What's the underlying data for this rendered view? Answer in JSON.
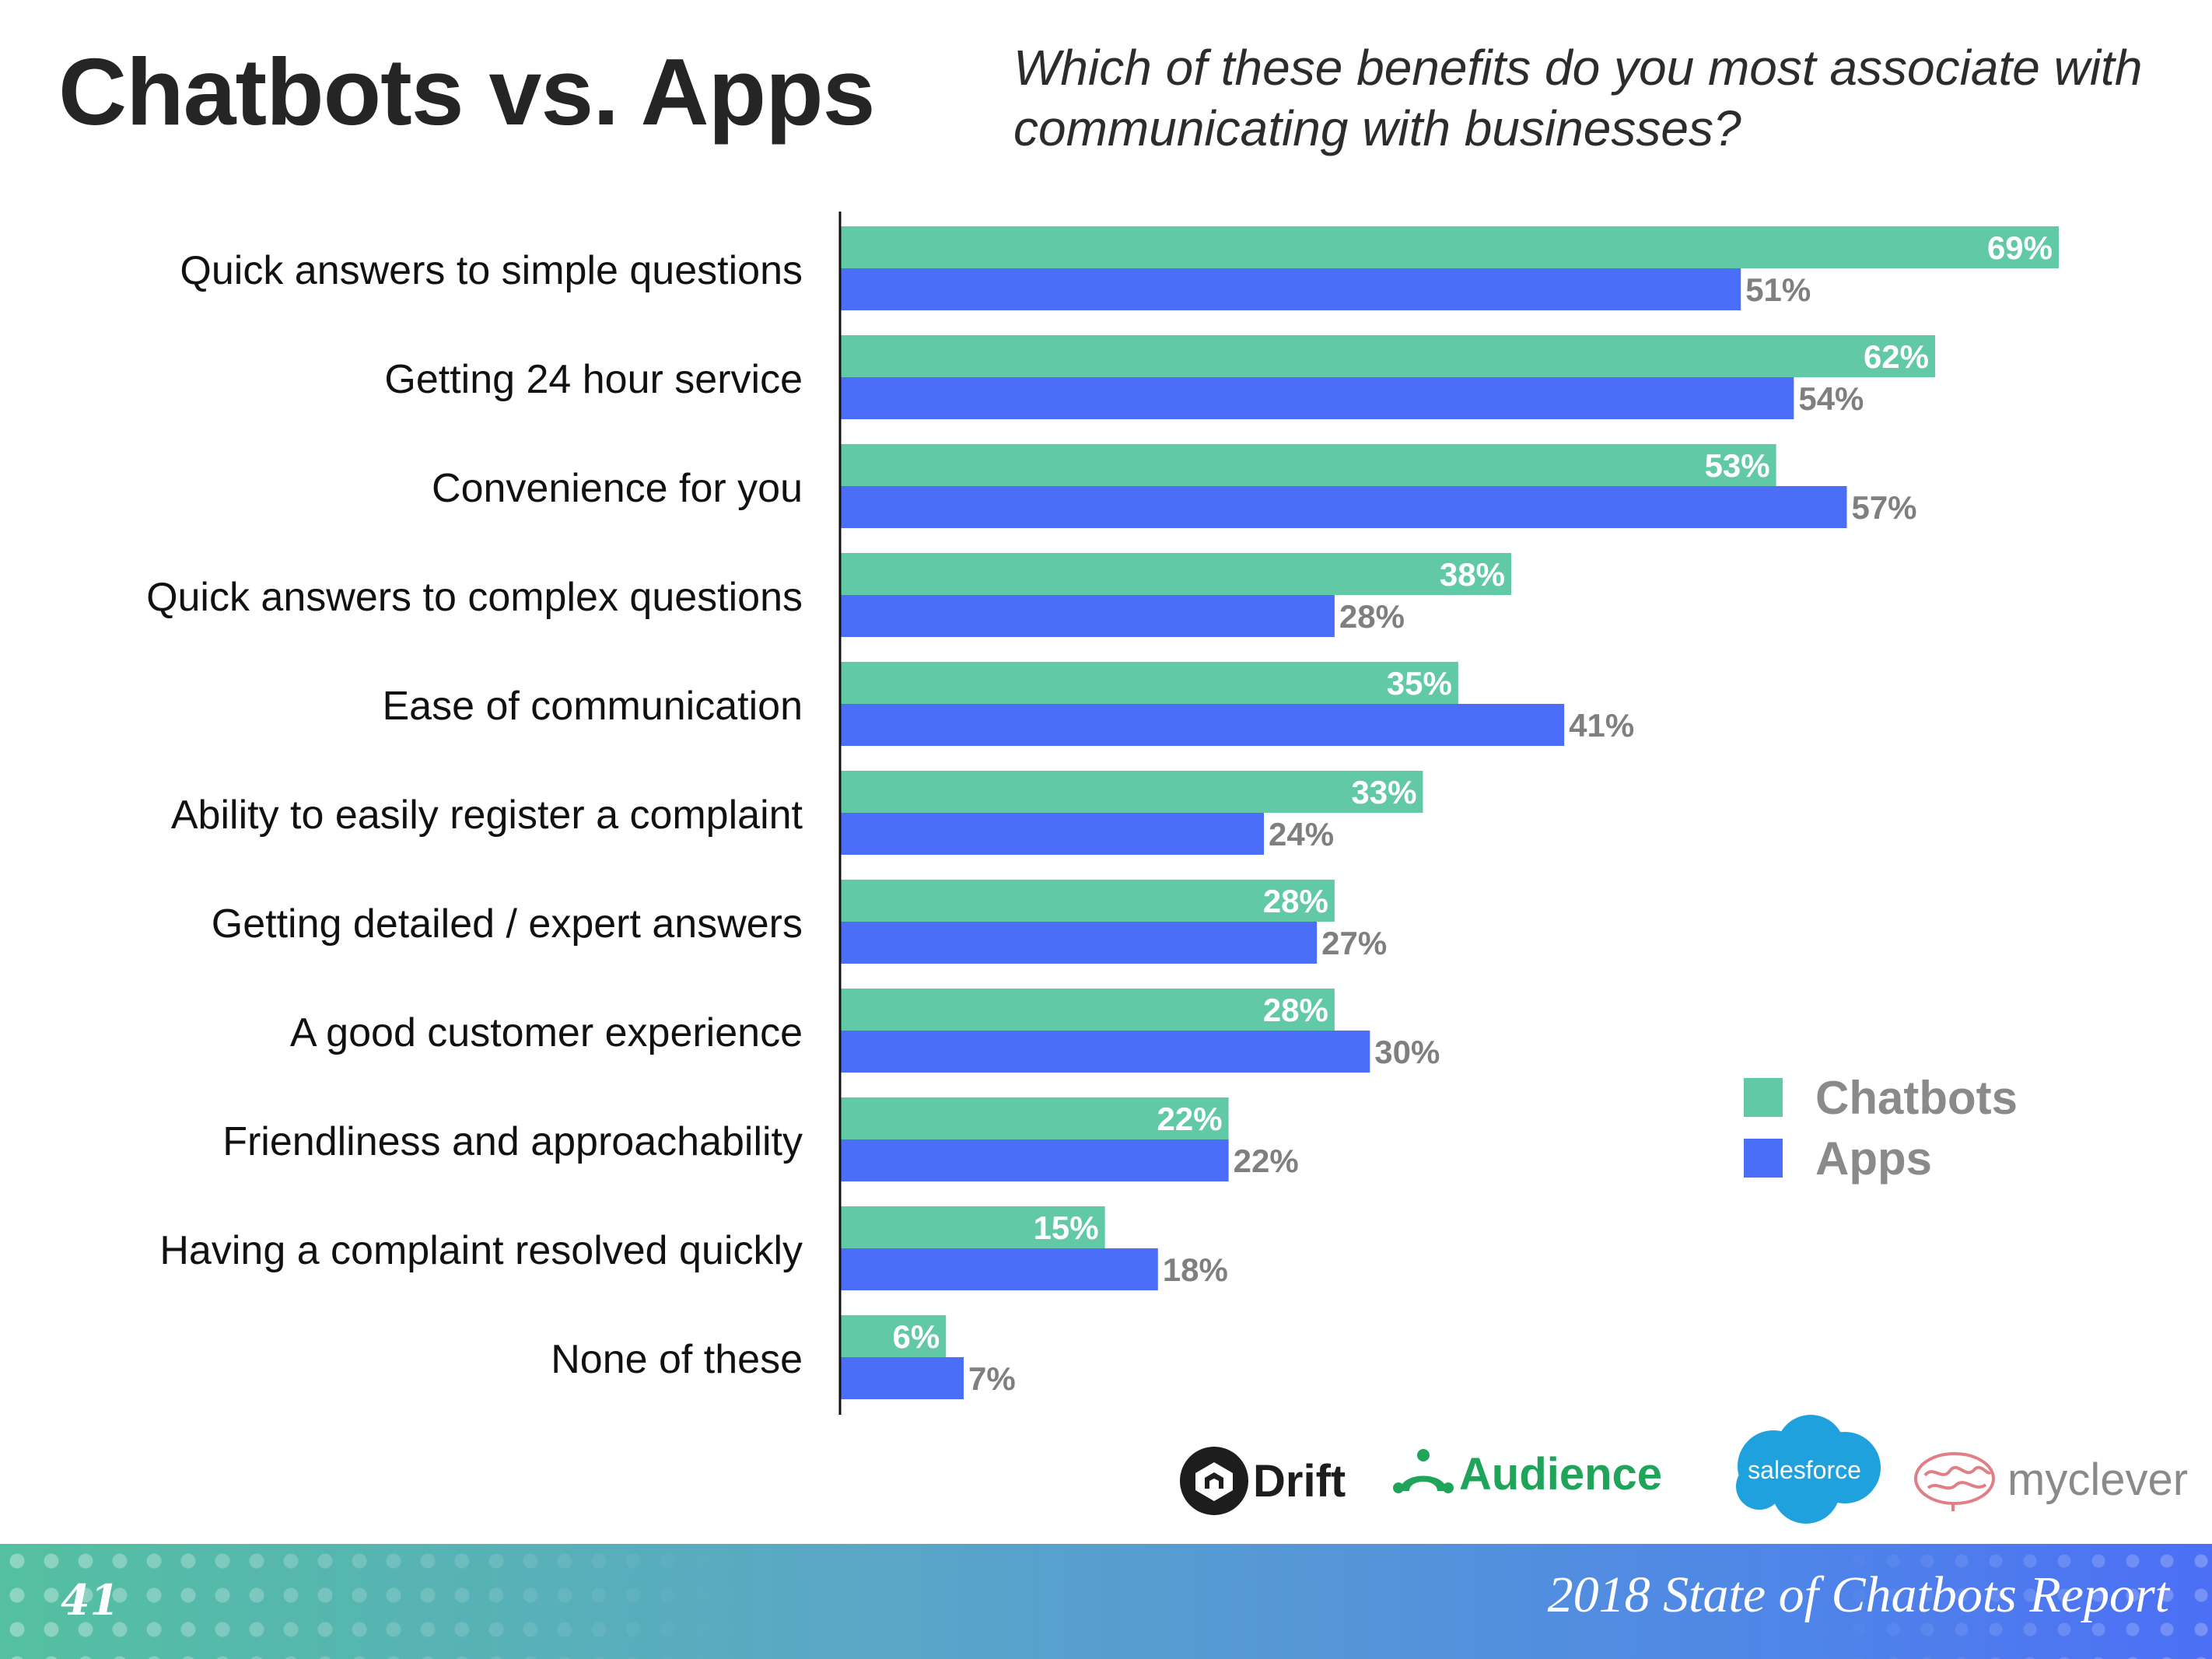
{
  "header": {
    "title": "Chatbots vs. Apps",
    "question": "Which of these benefits do you most associate with communicating with businesses?"
  },
  "colors": {
    "chatbots": "#62c9a6",
    "apps": "#4a6ef7",
    "chatbot_value_text": "#ffffff",
    "app_value_text": "#7f7f7f"
  },
  "chart_data": {
    "type": "bar",
    "orientation": "horizontal",
    "title": "Which of these benefits do you most associate with communicating with businesses?",
    "xlabel": "",
    "ylabel": "",
    "xlim": [
      0,
      100
    ],
    "grid": false,
    "legend_position": "bottom-right",
    "value_suffix": "%",
    "categories": [
      "Quick answers to simple questions",
      "Getting 24 hour service",
      "Convenience for you",
      "Quick answers to complex questions",
      "Ease of communication",
      "Ability to easily register a complaint",
      "Getting detailed / expert answers",
      "A good customer experience",
      "Friendliness and approachability",
      "Having a complaint resolved quickly",
      "None of these"
    ],
    "series": [
      {
        "name": "Chatbots",
        "values": [
          69,
          62,
          53,
          38,
          35,
          33,
          28,
          28,
          22,
          15,
          6
        ]
      },
      {
        "name": "Apps",
        "values": [
          51,
          54,
          57,
          28,
          41,
          24,
          27,
          30,
          22,
          18,
          7
        ]
      }
    ]
  },
  "legend": {
    "items": [
      {
        "label": "Chatbots",
        "color": "#62c9a6"
      },
      {
        "label": "Apps",
        "color": "#4a6ef7"
      }
    ]
  },
  "logos": {
    "drift": "Drift",
    "audience": "Audience",
    "salesforce": "salesforce",
    "myclever": "myclever"
  },
  "footer": {
    "page_number": "41",
    "report_name": "2018 State of Chatbots Report"
  }
}
